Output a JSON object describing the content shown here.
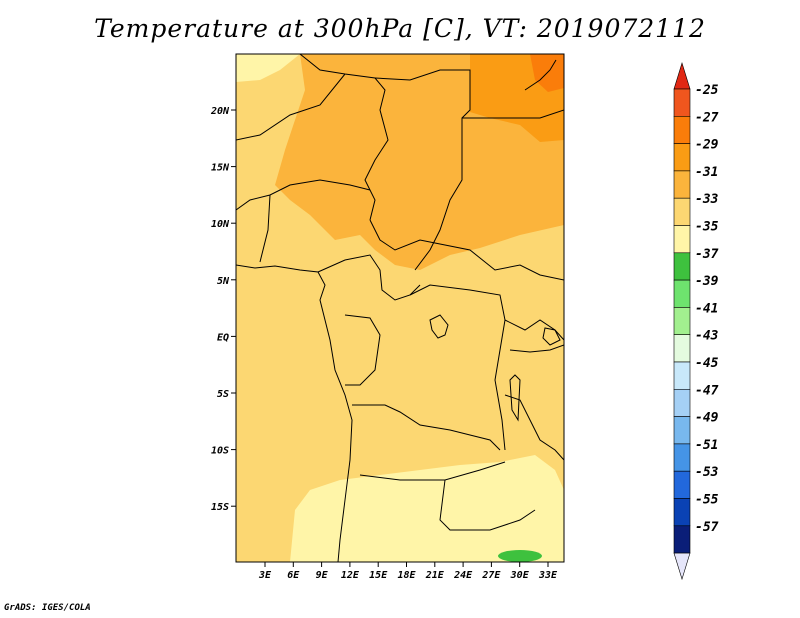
{
  "title": "Temperature at 300hPa [C], VT: 2019072112",
  "credit": "GrADS: IGES/COLA",
  "map": {
    "lat_labels": [
      "20N",
      "15N",
      "10N",
      "5N",
      "EQ",
      "5S",
      "10S",
      "15S"
    ],
    "lon_labels": [
      "3E",
      "6E",
      "9E",
      "12E",
      "15E",
      "18E",
      "21E",
      "24E",
      "27E",
      "30E",
      "33E"
    ]
  },
  "colorbar": {
    "labels": [
      "-25",
      "-27",
      "-29",
      "-31",
      "-33",
      "-35",
      "-37",
      "-39",
      "-41",
      "-43",
      "-45",
      "-47",
      "-49",
      "-51",
      "-53",
      "-55",
      "-57"
    ],
    "colors": [
      "#f0561e",
      "#fa7d0a",
      "#fa9c14",
      "#fbb43c",
      "#fcd772",
      "#fff5a8",
      "#3ec13e",
      "#6ee36e",
      "#a2f08f",
      "#e4fbdf",
      "#c8e8fa",
      "#a5d0f5",
      "#78b8ee",
      "#4594e6",
      "#2268dc",
      "#0a42b4",
      "#0a1e78"
    ],
    "top_color": "#e12814",
    "bottom_color": "#e6e6fa"
  }
}
